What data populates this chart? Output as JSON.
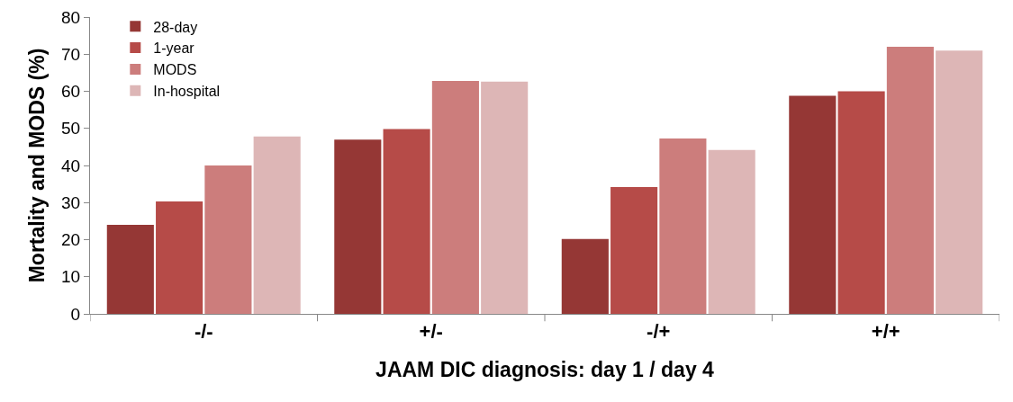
{
  "chart_data": {
    "type": "bar",
    "xlabel": "JAAM DIC diagnosis: day 1 / day 4",
    "ylabel": "Mortality and MODS (%)",
    "categories": [
      "-/-",
      "+/-",
      "-/+",
      "+/+"
    ],
    "series": [
      {
        "name": "28-day",
        "color": "#953735",
        "values": [
          24,
          47,
          20.2,
          58.8
        ]
      },
      {
        "name": "1-year",
        "color": "#b64b48",
        "values": [
          30.3,
          49.8,
          34.2,
          60
        ]
      },
      {
        "name": "MODS",
        "color": "#cc7d7c",
        "values": [
          40,
          62.8,
          47.3,
          72
        ]
      },
      {
        "name": "In-hospital",
        "color": "#ddb6b6",
        "values": [
          47.8,
          62.6,
          44.2,
          71
        ]
      }
    ],
    "ylim": [
      0,
      80
    ],
    "yticks": [
      0,
      10,
      20,
      30,
      40,
      50,
      60,
      70,
      80
    ],
    "grid": false,
    "legend": "top left"
  }
}
